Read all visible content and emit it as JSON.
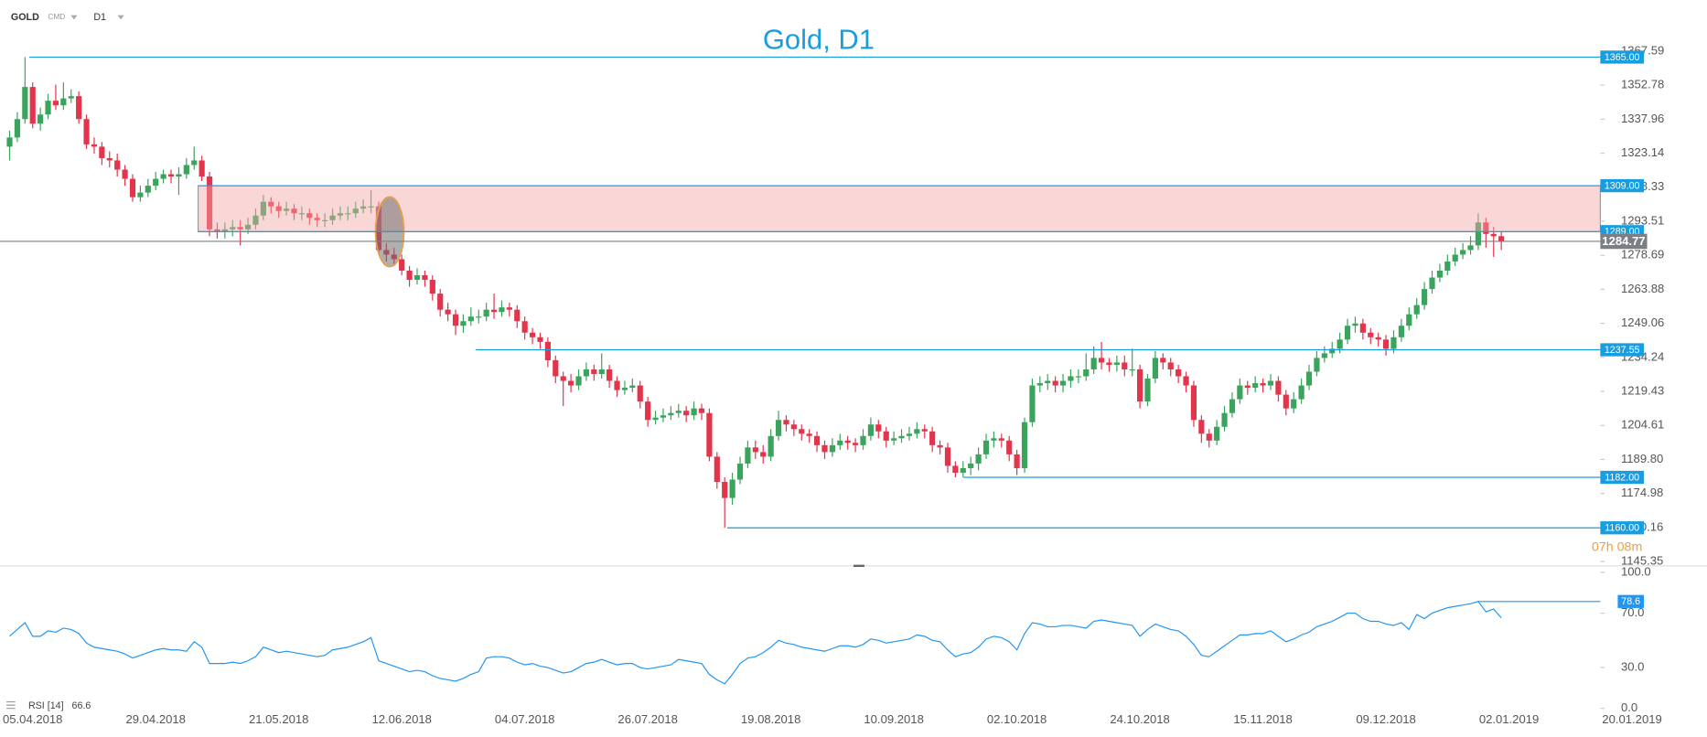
{
  "header": {
    "symbol": "GOLD",
    "market": "CMD",
    "timeframe": "D1"
  },
  "chart_data": [
    {
      "type": "candlestick",
      "title": "Gold, D1",
      "colors": {
        "up": "#3aa35c",
        "down": "#e2344b"
      },
      "xlim": [
        -1.25,
        220.75
      ],
      "xticks": [
        {
          "value": 3,
          "label": "05.04.2018"
        },
        {
          "value": 19,
          "label": "29.04.2018"
        },
        {
          "value": 35,
          "label": "21.05.2018"
        },
        {
          "value": 51,
          "label": "12.06.2018"
        },
        {
          "value": 67,
          "label": "04.07.2018"
        },
        {
          "value": 83,
          "label": "26.07.2018"
        },
        {
          "value": 99,
          "label": "19.08.2018"
        },
        {
          "value": 115,
          "label": "10.09.2018"
        },
        {
          "value": 131,
          "label": "02.10.2018"
        },
        {
          "value": 147,
          "label": "24.10.2018"
        },
        {
          "value": 163,
          "label": "15.11.2018"
        },
        {
          "value": 179,
          "label": "09.12.2018"
        },
        {
          "value": 195,
          "label": "02.01.2019"
        },
        {
          "value": 211,
          "label": "20.01.2019"
        }
      ],
      "ylim": [
        1143.45,
        1389.87
      ],
      "yticks": [
        1367.59,
        1352.78,
        1337.96,
        1323.14,
        1308.33,
        1293.51,
        1278.69,
        1263.88,
        1249.06,
        1234.24,
        1219.43,
        1204.61,
        {
          "value": 1189.8,
          "label": "1189.80"
        },
        1174.98,
        1160.16,
        1145.35
      ],
      "levels": [
        {
          "value": 1365,
          "label": "1365.00"
        },
        {
          "value": 1309,
          "label": "1309.00"
        },
        {
          "value": 1289,
          "label": "1289.00"
        },
        1237.55,
        {
          "value": 1182,
          "label": "1182.00"
        },
        {
          "value": 1160,
          "label": "1160.00"
        }
      ],
      "level_color": "#1a9de0",
      "zone": [
        1289,
        1309
      ],
      "zone_color": "#f4a6a6",
      "price_color": "#7b7f83",
      "countdown": "07h 08m",
      "open": [
        1326,
        1330,
        1338,
        1352,
        1336,
        1340,
        1346,
        1344,
        1347,
        1348,
        1338,
        1327,
        1326,
        1321,
        1320,
        1316,
        1312,
        1304,
        1306,
        1309,
        1312,
        1314,
        1313,
        1314,
        1318,
        1320,
        1313,
        1290,
        1289,
        1290,
        1291,
        1290,
        1292,
        1296,
        1302,
        1300,
        1298,
        1299,
        1297,
        1297,
        1295,
        1294,
        1294,
        1296,
        1297,
        1297,
        1299,
        1300,
        1300,
        1281,
        1279,
        1277,
        1272,
        1268,
        1270,
        1268,
        1262,
        1255,
        1253,
        1248,
        1250,
        1252,
        1252,
        1255,
        1254,
        1256,
        1255,
        1250,
        1245,
        1243,
        1241,
        1233,
        1226,
        1224,
        1222,
        1226,
        1229,
        1227,
        1229,
        1224,
        1220,
        1221,
        1222,
        1215,
        1207,
        1208,
        1209,
        1210,
        1211,
        1209,
        1212,
        1210,
        1191,
        1180,
        1173,
        1181,
        1188,
        1195,
        1193,
        1191,
        1200,
        1207,
        1205,
        1203,
        1201,
        1200,
        1196,
        1193,
        1196,
        1198,
        1197,
        1196,
        1200,
        1205,
        1202,
        1198,
        1199,
        1200,
        1201,
        1203,
        1202,
        1196,
        1195,
        1187,
        1184,
        1186,
        1188,
        1192,
        1198,
        1199,
        1198,
        1192,
        1186,
        1206,
        1222,
        1223,
        1224,
        1222,
        1224,
        1226,
        1226,
        1229,
        1234,
        1232,
        1231,
        1232,
        1229,
        1229,
        1215,
        1225,
        1234,
        1232,
        1229,
        1226,
        1222,
        1207,
        1201,
        1198,
        1204,
        1210,
        1216,
        1222,
        1221,
        1223,
        1222,
        1224,
        1218,
        1212,
        1216,
        1222,
        1228,
        1234,
        1236,
        1238,
        1242,
        1248,
        1249,
        1245,
        1243,
        1242,
        1238,
        1243,
        1248,
        1253,
        1257,
        1264,
        1269,
        1272,
        1276,
        1279,
        1281,
        1283,
        1293,
        1288,
        1287
      ],
      "high": [
        1333,
        1341,
        1365,
        1354,
        1343,
        1349,
        1353,
        1354,
        1351,
        1350,
        1340,
        1330,
        1328,
        1324,
        1323,
        1318,
        1314,
        1309,
        1312,
        1315,
        1316,
        1316,
        1317,
        1321,
        1326,
        1322,
        1315,
        1293,
        1293,
        1294,
        1294,
        1295,
        1299,
        1305,
        1304,
        1302,
        1302,
        1301,
        1300,
        1299,
        1297,
        1297,
        1299,
        1300,
        1300,
        1302,
        1303,
        1307,
        1302,
        1284,
        1282,
        1279,
        1274,
        1273,
        1272,
        1270,
        1264,
        1258,
        1255,
        1253,
        1256,
        1255,
        1258,
        1262,
        1259,
        1258,
        1257,
        1252,
        1247,
        1245,
        1243,
        1235,
        1228,
        1227,
        1229,
        1232,
        1231,
        1236,
        1231,
        1226,
        1224,
        1225,
        1224,
        1217,
        1211,
        1212,
        1213,
        1214,
        1213,
        1215,
        1214,
        1212,
        1193,
        1182,
        1184,
        1191,
        1198,
        1198,
        1196,
        1203,
        1211,
        1209,
        1207,
        1205,
        1203,
        1202,
        1198,
        1199,
        1201,
        1200,
        1199,
        1203,
        1208,
        1207,
        1204,
        1202,
        1203,
        1204,
        1206,
        1205,
        1204,
        1198,
        1197,
        1189,
        1189,
        1191,
        1195,
        1201,
        1202,
        1201,
        1200,
        1194,
        1208,
        1225,
        1226,
        1227,
        1226,
        1227,
        1229,
        1229,
        1236,
        1239,
        1241,
        1234,
        1235,
        1235,
        1238,
        1231,
        1227,
        1237,
        1236,
        1234,
        1231,
        1228,
        1224,
        1209,
        1203,
        1207,
        1213,
        1219,
        1225,
        1224,
        1226,
        1225,
        1227,
        1226,
        1220,
        1219,
        1225,
        1231,
        1237,
        1239,
        1241,
        1245,
        1251,
        1252,
        1251,
        1247,
        1245,
        1244,
        1246,
        1251,
        1256,
        1260,
        1267,
        1272,
        1275,
        1279,
        1282,
        1284,
        1287,
        1297,
        1295,
        1291,
        1289
      ],
      "low": [
        1320,
        1328,
        1336,
        1334,
        1333,
        1338,
        1342,
        1342,
        1345,
        1336,
        1325,
        1323,
        1318,
        1317,
        1313,
        1309,
        1302,
        1302,
        1304,
        1307,
        1310,
        1310,
        1305,
        1312,
        1316,
        1311,
        1287,
        1286,
        1286,
        1287,
        1283,
        1288,
        1290,
        1294,
        1297,
        1295,
        1296,
        1294,
        1294,
        1292,
        1291,
        1291,
        1292,
        1294,
        1294,
        1295,
        1297,
        1297,
        1279,
        1276,
        1274,
        1270,
        1265,
        1266,
        1265,
        1259,
        1252,
        1250,
        1244,
        1245,
        1248,
        1249,
        1250,
        1251,
        1252,
        1252,
        1247,
        1242,
        1240,
        1238,
        1230,
        1223,
        1213,
        1219,
        1220,
        1224,
        1224,
        1225,
        1221,
        1217,
        1218,
        1219,
        1212,
        1204,
        1205,
        1206,
        1207,
        1208,
        1206,
        1207,
        1207,
        1189,
        1177,
        1160,
        1170,
        1179,
        1186,
        1190,
        1188,
        1189,
        1198,
        1202,
        1200,
        1198,
        1197,
        1193,
        1190,
        1191,
        1194,
        1194,
        1193,
        1194,
        1198,
        1199,
        1195,
        1196,
        1197,
        1198,
        1199,
        1199,
        1193,
        1192,
        1184,
        1182,
        1182,
        1183,
        1185,
        1190,
        1195,
        1195,
        1189,
        1183,
        1184,
        1204,
        1219,
        1220,
        1219,
        1219,
        1221,
        1223,
        1224,
        1227,
        1229,
        1228,
        1228,
        1226,
        1226,
        1212,
        1213,
        1223,
        1229,
        1226,
        1223,
        1219,
        1204,
        1197,
        1195,
        1196,
        1202,
        1208,
        1214,
        1218,
        1219,
        1219,
        1220,
        1215,
        1209,
        1210,
        1214,
        1220,
        1226,
        1232,
        1234,
        1236,
        1240,
        1245,
        1242,
        1240,
        1239,
        1235,
        1236,
        1241,
        1246,
        1251,
        1255,
        1262,
        1267,
        1270,
        1274,
        1277,
        1279,
        1281,
        1282,
        1278,
        1281
      ],
      "close": [
        1330,
        1338,
        1352,
        1336,
        1340,
        1346,
        1344,
        1347,
        1348,
        1338,
        1327,
        1326,
        1321,
        1320,
        1316,
        1312,
        1304,
        1306,
        1309,
        1312,
        1314,
        1313,
        1314,
        1318,
        1320,
        1313,
        1290,
        1289,
        1290,
        1291,
        1290,
        1292,
        1296,
        1302,
        1300,
        1298,
        1299,
        1297,
        1297,
        1295,
        1294,
        1294,
        1296,
        1297,
        1297,
        1299,
        1300,
        1300,
        1281,
        1279,
        1277,
        1272,
        1268,
        1270,
        1268,
        1262,
        1255,
        1253,
        1248,
        1250,
        1252,
        1252,
        1255,
        1254,
        1256,
        1255,
        1250,
        1245,
        1243,
        1241,
        1233,
        1226,
        1224,
        1222,
        1226,
        1229,
        1227,
        1229,
        1224,
        1220,
        1221,
        1222,
        1215,
        1207,
        1208,
        1209,
        1210,
        1211,
        1209,
        1212,
        1210,
        1191,
        1180,
        1173,
        1181,
        1188,
        1195,
        1193,
        1191,
        1200,
        1207,
        1205,
        1203,
        1201,
        1200,
        1196,
        1193,
        1196,
        1198,
        1197,
        1196,
        1200,
        1205,
        1202,
        1198,
        1199,
        1200,
        1201,
        1203,
        1202,
        1196,
        1195,
        1187,
        1184,
        1186,
        1188,
        1192,
        1198,
        1199,
        1198,
        1192,
        1186,
        1206,
        1222,
        1223,
        1224,
        1222,
        1224,
        1226,
        1226,
        1229,
        1234,
        1232,
        1231,
        1232,
        1229,
        1229,
        1215,
        1225,
        1234,
        1232,
        1229,
        1226,
        1222,
        1207,
        1201,
        1198,
        1204,
        1210,
        1216,
        1222,
        1221,
        1223,
        1222,
        1224,
        1218,
        1212,
        1216,
        1222,
        1228,
        1234,
        1236,
        1238,
        1242,
        1248,
        1249,
        1245,
        1243,
        1242,
        1238,
        1243,
        1248,
        1253,
        1257,
        1264,
        1269,
        1272,
        1276,
        1279,
        1281,
        1283,
        1293,
        1288,
        1287,
        1284.77
      ]
    },
    {
      "type": "line",
      "name": "RSI [14]",
      "color": "#2196f3",
      "ylim": [
        0,
        100
      ],
      "yticks": [
        {
          "value": 100,
          "label": "100.0"
        },
        {
          "value": 70,
          "label": "70.0"
        },
        {
          "value": 30,
          "label": "30.0"
        },
        {
          "value": 0,
          "label": "0.0"
        }
      ],
      "values": [
        53,
        58,
        63,
        53,
        53,
        57,
        56,
        59,
        58,
        55,
        48,
        45,
        44,
        43,
        42,
        40,
        37,
        39,
        41,
        43,
        44,
        43,
        43,
        42,
        49,
        45,
        33,
        33,
        33,
        34,
        33,
        35,
        38,
        45,
        43,
        41,
        42,
        41,
        40,
        39,
        38,
        39,
        43,
        44,
        45,
        47,
        49,
        52,
        35,
        33,
        31,
        29,
        27,
        28,
        27,
        24,
        22,
        21,
        20,
        22,
        25,
        27,
        37,
        38,
        38,
        37,
        34,
        32,
        33,
        31,
        30,
        28,
        26,
        27,
        30,
        33,
        34,
        36,
        34,
        32,
        33,
        33,
        30,
        29,
        30,
        31,
        32,
        36,
        35,
        34,
        33,
        25,
        21,
        18,
        25,
        33,
        37,
        38,
        41,
        45,
        50,
        48,
        47,
        45,
        44,
        43,
        42,
        44,
        46,
        46,
        45,
        47,
        51,
        50,
        48,
        49,
        50,
        51,
        54,
        53,
        50,
        49,
        43,
        38,
        40,
        41,
        45,
        51,
        53,
        52,
        49,
        43,
        55,
        63,
        62,
        60,
        60,
        61,
        61,
        60,
        59,
        64,
        65,
        64,
        63,
        62,
        61,
        53,
        58,
        62,
        60,
        58,
        57,
        53,
        47,
        39,
        38,
        42,
        46,
        50,
        54,
        54,
        55,
        55,
        57,
        53,
        49,
        51,
        54,
        56,
        60,
        62,
        64,
        67,
        70,
        70,
        66,
        64,
        64,
        62,
        61,
        63,
        58,
        69,
        66,
        70,
        72,
        74,
        75,
        76,
        77,
        78.6,
        71,
        73,
        66.6
      ]
    }
  ]
}
